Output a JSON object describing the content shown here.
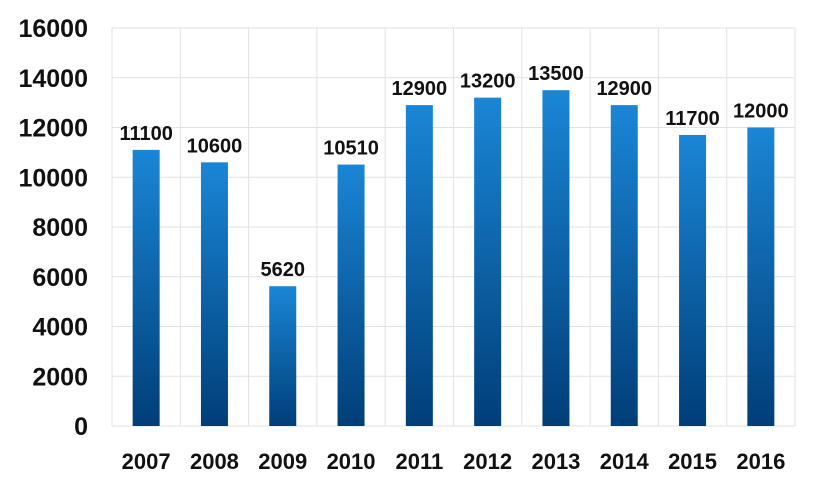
{
  "chart_data": {
    "type": "bar",
    "title": "",
    "xlabel": "",
    "ylabel": "",
    "categories": [
      "2007",
      "2008",
      "2009",
      "2010",
      "2011",
      "2012",
      "2013",
      "2014",
      "2015",
      "2016"
    ],
    "values": [
      11100,
      10600,
      5620,
      10510,
      12900,
      13200,
      13500,
      12900,
      11700,
      12000
    ],
    "data_labels": [
      "11100",
      "10600",
      "5620",
      "10510",
      "12900",
      "13200",
      "13500",
      "12900",
      "11700",
      "12000"
    ],
    "ylim": [
      0,
      16000
    ],
    "yticks": [
      "0",
      "2000",
      "4000",
      "6000",
      "8000",
      "10000",
      "12000",
      "14000",
      "16000"
    ],
    "grid": true,
    "legend": "none",
    "colors": {
      "bar_top": "#1a86d6",
      "bar_bottom": "#003e78",
      "grid": "#e2e2e2",
      "text": "#111111"
    }
  }
}
